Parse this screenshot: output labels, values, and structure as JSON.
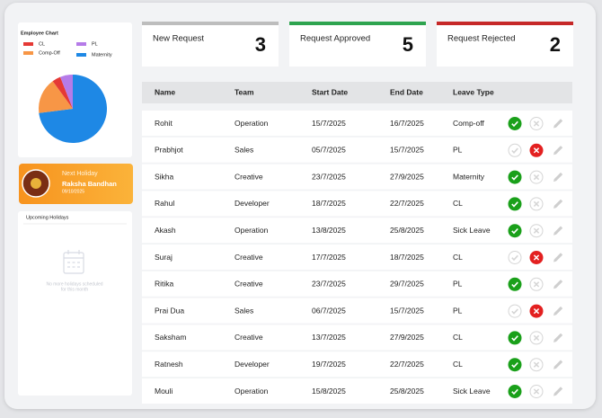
{
  "employee_chart": {
    "type": "pie",
    "title": "Employee Chart",
    "series": [
      {
        "name": "CL",
        "color": "#e53935",
        "value": 4
      },
      {
        "name": "Comp-Off",
        "color": "#f79646",
        "value": 17
      },
      {
        "name": "PL",
        "color": "#b57be8",
        "value": 6
      },
      {
        "name": "Maternity",
        "color": "#1e88e5",
        "value": 73
      }
    ]
  },
  "next_holiday": {
    "label": "Next Holiday",
    "name": "Raksha Bandhan",
    "date": "09/10/2025"
  },
  "upcoming_holidays": {
    "title": "Upcoming Holidays",
    "message": [
      "No more holidays scheduled",
      "for this month"
    ]
  },
  "stats": [
    {
      "label": "New Request",
      "value": 3,
      "color": "#bdbdbd"
    },
    {
      "label": "Request Approved",
      "value": 5,
      "color": "#2ea44f"
    },
    {
      "label": "Request Rejected",
      "value": 2,
      "color": "#c62828"
    }
  ],
  "table": {
    "columns": [
      "Name",
      "Team",
      "Start Date",
      "End Date",
      "Leave Type"
    ],
    "rows": [
      {
        "cells": [
          "Rohit",
          "Operation",
          "15/7/2025",
          "16/7/2025",
          "Comp-off"
        ],
        "status": "approved"
      },
      {
        "cells": [
          "Prabhjot",
          "Sales",
          "05/7/2025",
          "15/7/2025",
          "PL"
        ],
        "status": "rejected"
      },
      {
        "cells": [
          "Sikha",
          "Creative",
          "23/7/2025",
          "27/9/2025",
          "Maternity"
        ],
        "status": "approved"
      },
      {
        "cells": [
          "Rahul",
          "Developer",
          "18/7/2025",
          "22/7/2025",
          "CL"
        ],
        "status": "approved"
      },
      {
        "cells": [
          "Akash",
          "Operation",
          "13/8/2025",
          "25/8/2025",
          "Sick Leave"
        ],
        "status": "approved"
      },
      {
        "cells": [
          "Suraj",
          "Creative",
          "17/7/2025",
          "18/7/2025",
          "CL"
        ],
        "status": "rejected"
      },
      {
        "cells": [
          "Ritika",
          "Creative",
          "23/7/2025",
          "29/7/2025",
          "PL"
        ],
        "status": "approved"
      },
      {
        "cells": [
          "Prai Dua",
          "Sales",
          "06/7/2025",
          "15/7/2025",
          "PL"
        ],
        "status": "rejected"
      },
      {
        "cells": [
          "Saksham",
          "Creative",
          "13/7/2025",
          "27/9/2025",
          "CL"
        ],
        "status": "approved"
      },
      {
        "cells": [
          "Ratnesh",
          "Developer",
          "19/7/2025",
          "22/7/2025",
          "CL"
        ],
        "status": "approved"
      },
      {
        "cells": [
          "Mouli",
          "Operation",
          "15/8/2025",
          "25/8/2025",
          "Sick Leave"
        ],
        "status": "approved"
      }
    ]
  }
}
